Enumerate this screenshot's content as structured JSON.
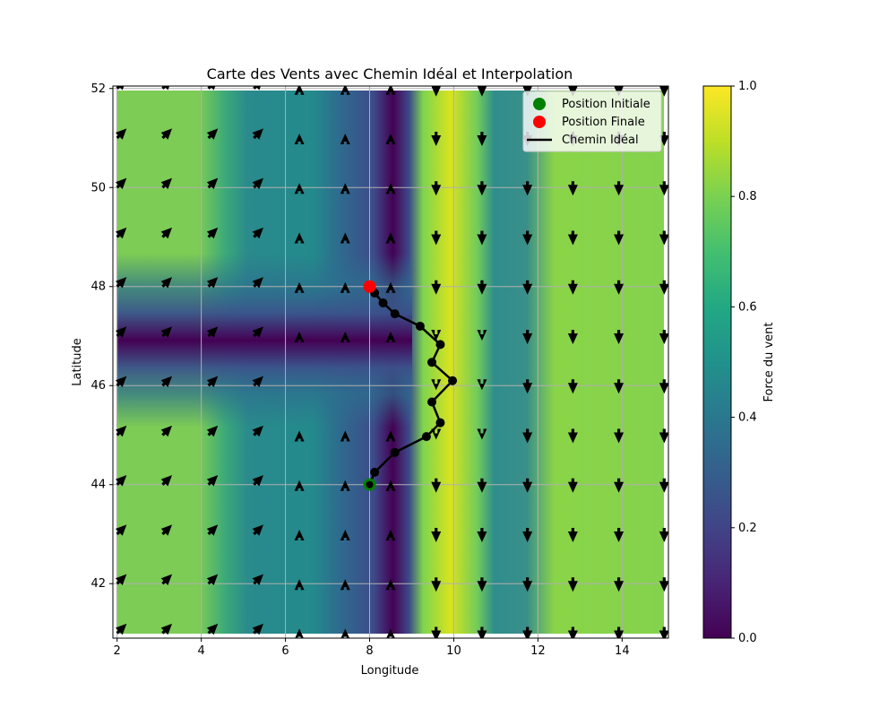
{
  "chart_data": {
    "type": "heatmap",
    "title": "Carte des Vents avec Chemin Idéal et Interpolation",
    "xlabel": "Longitude",
    "ylabel": "Latitude",
    "xlim": [
      1.9,
      15.1
    ],
    "ylim": [
      40.9,
      52.05
    ],
    "xticks": [
      2,
      4,
      6,
      8,
      10,
      12,
      14
    ],
    "yticks": [
      42,
      44,
      46,
      48,
      50,
      52
    ],
    "grid": true,
    "legend_position": "top-right",
    "colorbar": {
      "label": "Force du vent",
      "range": [
        0,
        1
      ],
      "ticks": [
        "0.0",
        "0.2",
        "0.4",
        "0.6",
        "0.8",
        "1.0"
      ],
      "colormap": "viridis"
    },
    "legend": [
      {
        "label": "Position Initiale",
        "marker": "circle",
        "color": "#008000"
      },
      {
        "label": "Position Finale",
        "marker": "circle",
        "color": "#ff0000"
      },
      {
        "label": "Chemin Idéal",
        "marker": "line",
        "color": "#000000"
      }
    ],
    "start": {
      "x": 8.0,
      "y": 44.0
    },
    "end": {
      "x": 8.0,
      "y": 48.0
    },
    "path": [
      {
        "x": 8.0,
        "y": 44.0
      },
      {
        "x": 8.12,
        "y": 44.25
      },
      {
        "x": 8.6,
        "y": 44.65
      },
      {
        "x": 9.35,
        "y": 44.97
      },
      {
        "x": 9.68,
        "y": 45.25
      },
      {
        "x": 9.48,
        "y": 45.67
      },
      {
        "x": 9.97,
        "y": 46.1
      },
      {
        "x": 9.48,
        "y": 46.47
      },
      {
        "x": 9.68,
        "y": 46.83
      },
      {
        "x": 9.2,
        "y": 47.2
      },
      {
        "x": 8.6,
        "y": 47.45
      },
      {
        "x": 8.32,
        "y": 47.67
      },
      {
        "x": 8.12,
        "y": 47.87
      },
      {
        "x": 8.0,
        "y": 48.0
      }
    ],
    "quiver_grid": {
      "x": [
        2,
        3.08,
        4.17,
        5.25,
        6.33,
        7.42,
        8.5,
        9.58,
        10.67,
        11.75,
        12.83,
        13.92,
        15
      ],
      "y": [
        41,
        42.0,
        43.0,
        44.0,
        45.0,
        46.0,
        47.0,
        48.0,
        49.0,
        50.0,
        51.0,
        52
      ]
    }
  }
}
